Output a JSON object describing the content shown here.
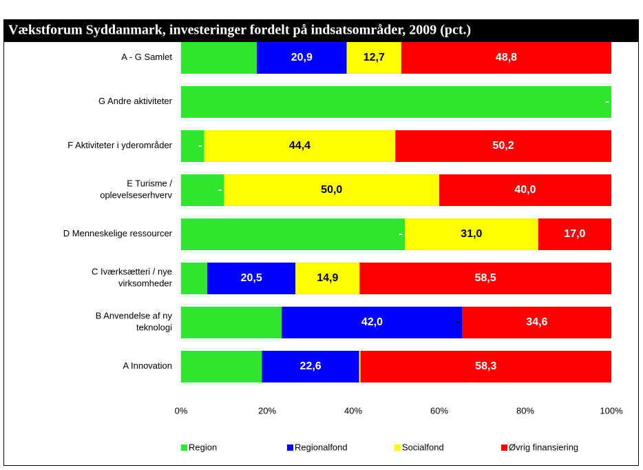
{
  "chart_data": {
    "type": "stacked-barh",
    "title": "Vækstforum Syddanmark, investeringer fordelt på indsatsområder, 2009 (pct.)",
    "categories": [
      [
        "A - G Samlet"
      ],
      [
        "G  Andre aktiviteter"
      ],
      [
        "F Aktiviteter i yderområder"
      ],
      [
        "E Turisme /",
        "oplevelseserhverv"
      ],
      [
        "D Menneskelige ressourcer"
      ],
      [
        "C Iværksætteri / nye",
        "virksomheder"
      ],
      [
        "B Anvendelse af ny",
        "teknologi"
      ],
      [
        "A Innovation"
      ]
    ],
    "series": [
      {
        "name": "Region",
        "color": "#2ee62e",
        "label_color": "#ffffff",
        "values": [
          17.6,
          100,
          5.4,
          10.0,
          52.0,
          6.1,
          23.4,
          18.8
        ]
      },
      {
        "name": "Regionalfond",
        "color": "#0000ff",
        "label_color": "#ffffff",
        "values": [
          20.9,
          0,
          0,
          0,
          0,
          20.5,
          42.0,
          22.6
        ],
        "value_labels": [
          "20,9",
          null,
          "-",
          "-",
          "-",
          "20,5",
          "42,0",
          "22,6"
        ]
      },
      {
        "name": "Socialfond",
        "color": "#ffff00",
        "label_color": "#000000",
        "values": [
          12.7,
          0,
          44.4,
          50.0,
          31.0,
          14.9,
          0,
          0.3
        ],
        "value_labels": [
          "12,7",
          null,
          "44,4",
          "50,0",
          "31,0",
          "14,9",
          "-",
          null
        ]
      },
      {
        "name": "Øvrig finansiering",
        "color": "#ff0000",
        "label_color": "#ffffff",
        "values": [
          48.8,
          0,
          50.2,
          40.0,
          17.0,
          58.5,
          34.6,
          58.3
        ],
        "value_labels": [
          "48,8",
          "-",
          "50,2",
          "40,0",
          "17,0",
          "58,5",
          "34,6",
          "58,3"
        ]
      }
    ],
    "xlim": [
      0,
      100
    ],
    "xticks": [
      {
        "value": 0,
        "label": "0%"
      },
      {
        "value": 20,
        "label": "20%"
      },
      {
        "value": 40,
        "label": "40%"
      },
      {
        "value": 60,
        "label": "60%"
      },
      {
        "value": 80,
        "label": "80%"
      },
      {
        "value": 100,
        "label": "100%"
      }
    ],
    "grid": false,
    "legend": "bottom"
  }
}
